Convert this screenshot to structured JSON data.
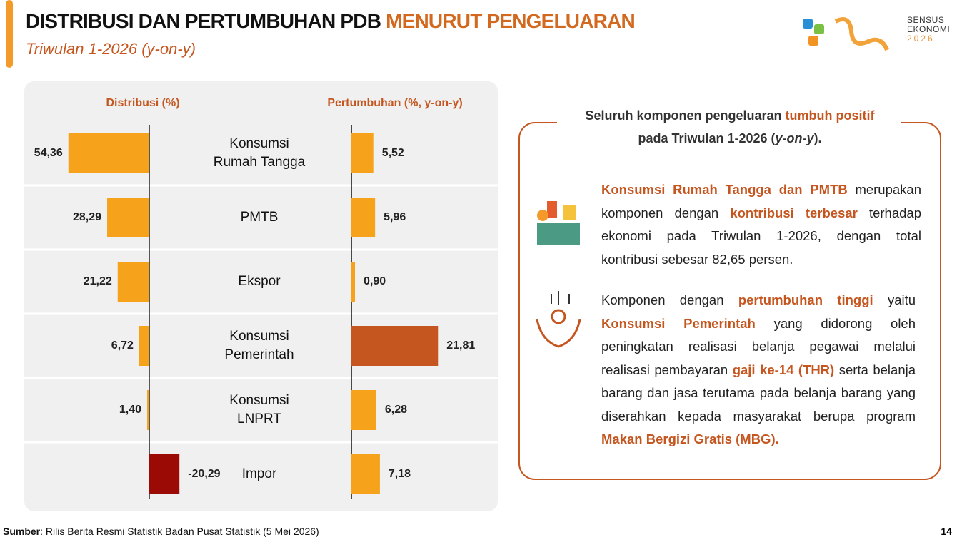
{
  "header": {
    "title": "DISTRIBUSI DAN PERTUMBUHAN PDB",
    "title_accent": "MENURUT PENGELUARAN",
    "subtitle": "Triwulan 1-2026 (y-on-y)"
  },
  "logo": {
    "lines": [
      "SENSUS",
      "EKONOMI",
      "2026"
    ]
  },
  "chart_data": [
    {
      "type": "hbar",
      "title": "Distribusi (%)",
      "categories": [
        "Konsumsi Rumah Tangga",
        "PMTB",
        "Ekspor",
        "Konsumsi Pemerintah",
        "Konsumsi LNPRT",
        "Impor"
      ],
      "values": [
        54.36,
        28.29,
        21.22,
        6.72,
        1.4,
        -20.29
      ],
      "value_labels": [
        "54,36",
        "28,29",
        "21,22",
        "6,72",
        "1,40",
        "-20,29"
      ],
      "colors": [
        "#f7a21b",
        "#f7a21b",
        "#f7a21b",
        "#f7a21b",
        "#f7a21b",
        "#9b0a05"
      ],
      "xlim": [
        60,
        -25
      ]
    },
    {
      "type": "hbar",
      "title": "Pertumbuhan (%, y-on-y)",
      "values": [
        5.52,
        5.96,
        0.9,
        21.81,
        6.28,
        7.18
      ],
      "value_labels": [
        "5,52",
        "5,96",
        "0,90",
        "21,81",
        "6,28",
        "7,18"
      ],
      "colors": [
        "#f7a21b",
        "#f7a21b",
        "#f7a21b",
        "#c5561f",
        "#f7a21b",
        "#f7a21b"
      ],
      "xlim": [
        0,
        25
      ]
    }
  ],
  "panel": {
    "heading": [
      "Seluruh komponen pengeluaran",
      "tumbuh positif",
      "pada Triwulan 1-2026 (",
      "y-on-y",
      ")."
    ],
    "paragraphs": [
      [
        "Konsumsi Rumah Tangga dan PMTB",
        "merupakan komponen dengan",
        "kontribusi terbesar",
        "terhadap ekonomi pada Triwulan 1-2026, dengan total kontribusi sebesar 82,65 persen."
      ],
      [
        "Komponen dengan",
        "pertumbuhan tinggi",
        "yaitu",
        "Konsumsi Pemerintah",
        "yang didorong oleh peningkatan realisasi belanja pegawai melalui realisasi pembayaran",
        "gaji ke-14 (THR)",
        "serta belanja barang dan jasa terutama pada belanja barang yang diserahkan kepada masyarakat berupa program",
        "Makan Bergizi Gratis (MBG)."
      ]
    ]
  },
  "footer": {
    "source_label": "Sumber",
    "source": ": Rilis Berita Resmi Statistik Badan Pusat Statistik (5 Mei 2026)",
    "page": "14"
  }
}
